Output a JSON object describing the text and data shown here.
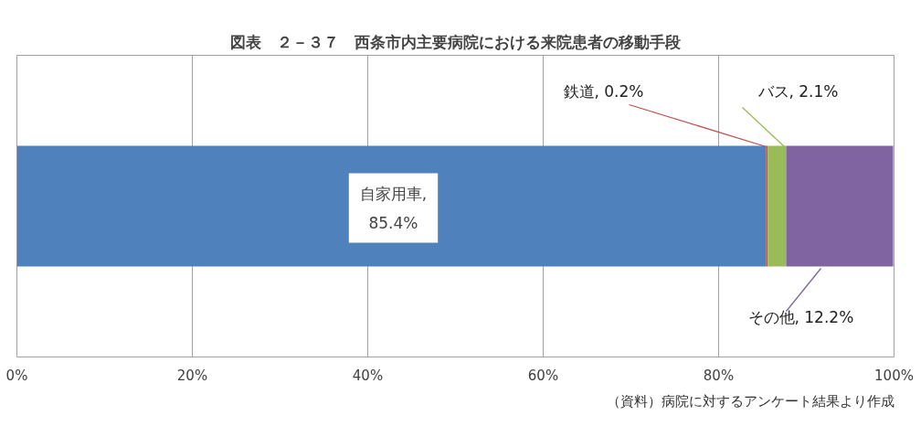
{
  "chart_data": {
    "type": "bar",
    "orientation": "horizontal",
    "stacked": true,
    "title": "図表　２－３７　西条市内主要病院における来院患者の移動手段",
    "categories": [
      null
    ],
    "series": [
      {
        "color": "#4f81bd",
        "values": [
          85.4
        ],
        "value_labels": [
          "自家用車, 85.4%"
        ]
      },
      {
        "color": "#c0504d",
        "values": [
          0.2
        ],
        "value_labels": [
          "鉄道, 0.2%"
        ]
      },
      {
        "color": "#9bbb59",
        "values": [
          2.1
        ],
        "value_labels": [
          "バス, 2.1%"
        ]
      },
      {
        "color": "#8064a2",
        "values": [
          12.2
        ],
        "value_labels": [
          "その他, 12.2%"
        ]
      }
    ],
    "xlim": [
      0,
      100
    ],
    "xticks": [
      {
        "value": 0,
        "label": "0%"
      },
      {
        "value": 20,
        "label": "20%"
      },
      {
        "value": 40,
        "label": "40%"
      },
      {
        "value": 60,
        "label": "60%"
      },
      {
        "value": 80,
        "label": "80%"
      },
      {
        "value": 100,
        "label": "100%"
      }
    ],
    "grid": "x",
    "annotations": [
      "（資料）病院に対するアンケート結果より作成"
    ]
  }
}
